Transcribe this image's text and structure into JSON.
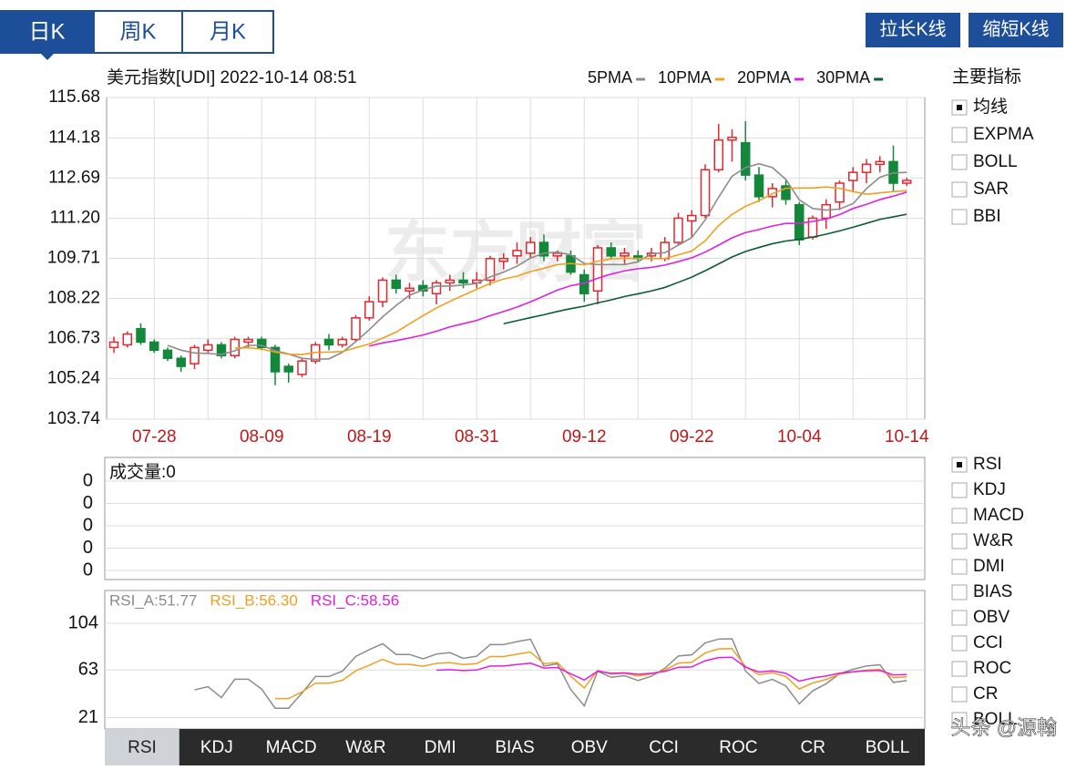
{
  "tabs": [
    "日K",
    "周K",
    "月K"
  ],
  "buttons": [
    "拉长K线",
    "缩短K线"
  ],
  "chart_data": {
    "type": "candlestick",
    "title": "美元指数[UDI] 2022-10-14 08:51",
    "watermark": "东方财富",
    "categories": [
      null,
      null,
      null,
      "07-28",
      null,
      null,
      null,
      null,
      null,
      null,
      null,
      "08-09",
      null,
      null,
      null,
      null,
      null,
      null,
      null,
      "08-19",
      null,
      null,
      null,
      null,
      null,
      null,
      null,
      "08-31",
      null,
      null,
      null,
      null,
      null,
      null,
      null,
      "09-12",
      null,
      null,
      null,
      null,
      null,
      null,
      null,
      "09-22",
      null,
      null,
      null,
      null,
      null,
      null,
      null,
      "10-04",
      null,
      null,
      null,
      null,
      null,
      null,
      null,
      "10-14"
    ],
    "open": [
      106.4,
      106.5,
      107.1,
      106.6,
      106.3,
      106.0,
      105.8,
      106.3,
      106.5,
      106.1,
      106.6,
      106.7,
      106.4,
      105.7,
      105.4,
      105.9,
      106.7,
      106.5,
      106.7,
      107.5,
      108.1,
      108.9,
      108.5,
      108.7,
      108.4,
      108.8,
      108.9,
      108.8,
      108.9,
      109.6,
      109.8,
      109.9,
      110.3,
      109.8,
      109.8,
      109.1,
      108.5,
      110.1,
      109.8,
      109.8,
      109.8,
      109.7,
      110.3,
      111.1,
      111.3,
      113.0,
      114.1,
      114.0,
      112.8,
      112.0,
      112.4,
      111.7,
      110.5,
      111.2,
      111.8,
      112.6,
      112.9,
      113.2,
      113.3,
      112.5
    ],
    "high": [
      106.8,
      107.0,
      107.3,
      106.7,
      106.4,
      106.1,
      106.5,
      106.7,
      106.6,
      106.8,
      106.8,
      106.8,
      106.5,
      105.8,
      106.0,
      106.6,
      106.9,
      106.8,
      107.6,
      108.3,
      109.0,
      109.1,
      108.8,
      108.9,
      108.9,
      109.1,
      109.2,
      109.2,
      109.8,
      109.9,
      110.3,
      110.5,
      110.6,
      110.0,
      110.0,
      109.3,
      110.2,
      110.3,
      110.1,
      110.0,
      110.1,
      110.5,
      111.4,
      111.5,
      113.2,
      114.7,
      114.5,
      114.8,
      113.1,
      112.5,
      112.6,
      111.8,
      111.3,
      111.9,
      112.6,
      113.1,
      113.4,
      113.5,
      113.9,
      112.7
    ],
    "low": [
      106.2,
      106.4,
      106.5,
      106.2,
      105.9,
      105.5,
      105.6,
      106.2,
      106.0,
      106.0,
      106.4,
      106.3,
      105.0,
      105.1,
      105.3,
      105.8,
      106.3,
      106.4,
      106.6,
      107.4,
      107.9,
      108.4,
      108.2,
      108.3,
      108.0,
      108.5,
      108.6,
      108.6,
      108.7,
      109.3,
      109.5,
      109.7,
      109.6,
      109.6,
      109.1,
      108.1,
      108.0,
      109.7,
      109.5,
      109.6,
      109.6,
      109.6,
      110.2,
      110.5,
      111.2,
      112.9,
      113.3,
      112.6,
      111.8,
      111.6,
      111.7,
      110.2,
      110.4,
      110.8,
      111.5,
      112.2,
      112.5,
      112.9,
      112.2,
      112.4
    ],
    "close": [
      106.6,
      106.9,
      106.6,
      106.3,
      106.0,
      105.7,
      106.4,
      106.5,
      106.1,
      106.7,
      106.7,
      106.4,
      105.5,
      105.5,
      105.9,
      106.5,
      106.5,
      106.7,
      107.5,
      108.1,
      108.9,
      108.6,
      108.6,
      108.5,
      108.8,
      108.9,
      108.8,
      108.9,
      109.7,
      109.7,
      110.0,
      110.3,
      109.8,
      109.9,
      109.2,
      108.4,
      110.1,
      109.8,
      109.9,
      109.7,
      109.9,
      110.3,
      111.2,
      111.3,
      113.0,
      114.1,
      114.2,
      112.8,
      112.0,
      112.3,
      111.9,
      110.4,
      111.2,
      111.7,
      112.5,
      112.9,
      113.2,
      113.3,
      112.5,
      112.6
    ],
    "up_color": "#e0282e",
    "down_color": "#13883a",
    "ma": [
      {
        "name": "5PMA",
        "color": "#8c8c8c"
      },
      {
        "name": "10PMA",
        "color": "#f0a020"
      },
      {
        "name": "20PMA",
        "color": "#e020e0"
      },
      {
        "name": "30PMA",
        "color": "#0b5e32"
      }
    ],
    "ylim": [
      103.74,
      115.68
    ],
    "yticks": [
      103.74,
      105.24,
      106.73,
      108.22,
      109.71,
      {
        "value": 111.2,
        "label": "111.20"
      },
      112.69,
      114.18,
      115.68
    ],
    "grid": true
  },
  "volume_panel": {
    "label": "成交量:0",
    "ytick_labels": [
      "0",
      "0",
      "0",
      "0",
      "0"
    ]
  },
  "rsi_panel": {
    "legend": [
      {
        "text": "RSI_A:51.77",
        "color": "#8c8c8c"
      },
      {
        "text": "RSI_B:56.30",
        "color": "#f0a020"
      },
      {
        "text": "RSI_C:58.56",
        "color": "#e020e0"
      }
    ],
    "ylim": [
      11,
      133
    ],
    "yticks": [
      21,
      63,
      104
    ]
  },
  "main_indicators": {
    "title": "主要指标",
    "items": [
      "均线",
      "EXPMA",
      "BOLL",
      "SAR",
      "BBI"
    ]
  },
  "sub_indicators": [
    "RSI",
    "KDJ",
    "MACD",
    "W&R",
    "DMI",
    "BIAS",
    "OBV",
    "CCI",
    "ROC",
    "CR",
    "BOLL"
  ],
  "bottom_tabs": [
    "RSI",
    "KDJ",
    "MACD",
    "W&R",
    "DMI",
    "BIAS",
    "OBV",
    "CCI",
    "ROC",
    "CR",
    "BOLL"
  ],
  "footer_watermark": "头条 @源翰"
}
